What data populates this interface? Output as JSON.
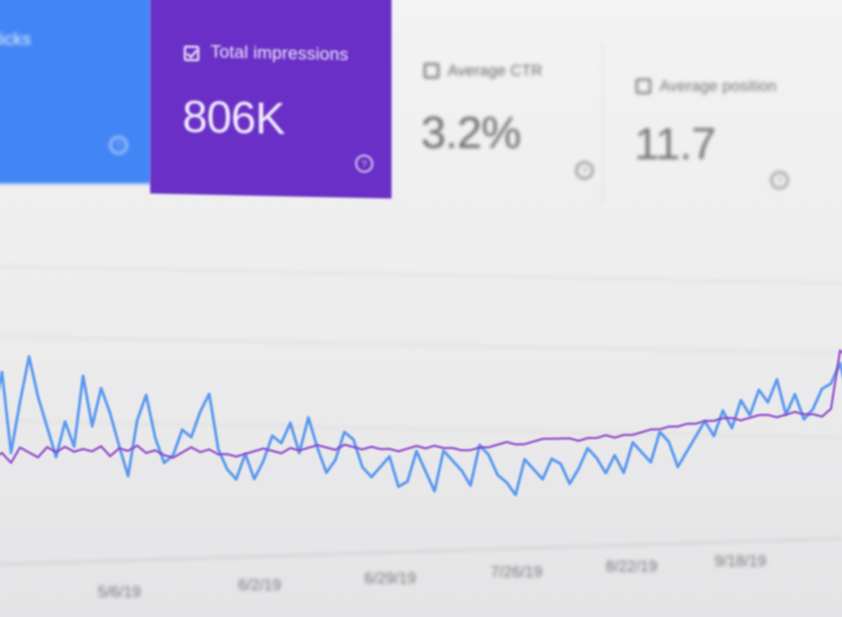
{
  "metrics": {
    "clicks": {
      "label": "clicks",
      "selected": true,
      "help_icon": "help-circle-icon",
      "color": "#4285f4"
    },
    "impressions": {
      "label": "Total impressions",
      "value": "806K",
      "selected": true,
      "help_icon": "help-circle-icon",
      "color": "#6a2fc6"
    },
    "ctr": {
      "label": "Average CTR",
      "value": "3.2%",
      "selected": false,
      "help_icon": "help-circle-icon"
    },
    "position": {
      "label": "Average position",
      "value": "11.7",
      "selected": false,
      "help_icon": "help-circle-icon"
    }
  },
  "chart_data": {
    "type": "line",
    "x_tick_labels": [
      "5/6/19",
      "6/2/19",
      "6/29/19",
      "7/26/19",
      "8/22/19",
      "9/18/19"
    ],
    "grid": true,
    "series": [
      {
        "color": "#4a8ff0",
        "values": [
          55,
          72,
          40,
          60,
          78,
          62,
          50,
          38,
          52,
          42,
          70,
          50,
          65,
          55,
          42,
          30,
          52,
          62,
          45,
          35,
          38,
          48,
          45,
          55,
          62,
          40,
          32,
          28,
          38,
          28,
          35,
          45,
          42,
          50,
          38,
          52,
          40,
          30,
          35,
          46,
          43,
          32,
          28,
          32,
          36,
          24,
          26,
          38,
          30,
          22,
          38,
          34,
          30,
          24,
          40,
          36,
          28,
          25,
          20,
          34,
          30,
          26,
          34,
          32,
          24,
          30,
          38,
          34,
          28,
          35,
          28,
          40,
          36,
          32,
          44,
          40,
          30,
          36,
          42,
          48,
          42,
          52,
          45,
          56,
          50,
          60,
          55,
          64,
          50,
          58,
          48,
          52,
          60,
          62,
          70,
          55
        ]
      },
      {
        "color": "#8f47c9",
        "values": [
          38,
          40,
          36,
          42,
          40,
          38,
          42,
          40,
          42,
          40,
          41,
          40,
          42,
          38,
          41,
          40,
          42,
          39,
          40,
          38,
          37,
          39,
          41,
          39,
          40,
          38,
          38,
          37,
          38,
          39,
          40,
          39,
          38,
          40,
          39,
          40,
          41,
          40,
          39,
          41,
          40,
          39,
          40,
          39,
          39,
          38,
          39,
          40,
          39,
          40,
          39,
          39,
          38,
          38,
          39,
          39,
          40,
          41,
          40,
          40,
          41,
          42,
          42,
          42,
          42,
          41,
          42,
          42,
          43,
          42,
          43,
          43,
          44,
          45,
          45,
          46,
          46,
          47,
          47,
          48,
          48,
          49,
          49,
          48,
          49,
          50,
          50,
          49,
          50,
          51,
          50,
          50,
          49,
          52,
          75,
          72
        ]
      }
    ]
  }
}
